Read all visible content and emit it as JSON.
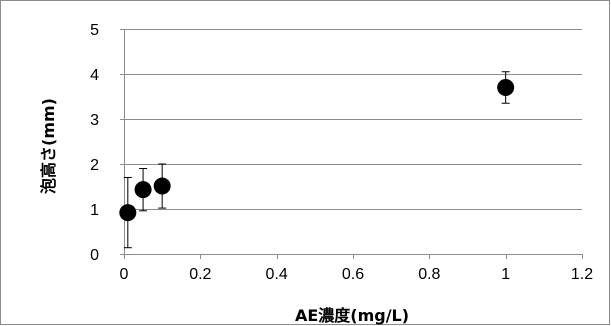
{
  "chart_data": {
    "type": "scatter",
    "title": "",
    "xlabel": "AE濃度(mg/L)",
    "ylabel": "泡高さ(mm)",
    "xlim": [
      0,
      1.2
    ],
    "ylim": [
      0,
      5
    ],
    "x_ticks": [
      "0",
      "0.2",
      "0.4",
      "0.6",
      "0.8",
      "1",
      "1.2"
    ],
    "y_ticks": [
      "0",
      "1",
      "2",
      "3",
      "4",
      "5"
    ],
    "grid": {
      "horizontal": true,
      "vertical": false
    },
    "legend": "none",
    "colors": {
      "marker": "#000000",
      "gridline": "#8c8c8c",
      "axis": "#8c8c8c"
    },
    "series": [
      {
        "points": [
          {
            "x": 0.01,
            "y": 0.92,
            "y_err_low": 0.78,
            "y_err_high": 0.78
          },
          {
            "x": 0.05,
            "y": 1.43,
            "y_err_low": 0.47,
            "y_err_high": 0.47
          },
          {
            "x": 0.1,
            "y": 1.51,
            "y_err_low": 0.49,
            "y_err_high": 0.49
          },
          {
            "x": 1.0,
            "y": 3.7,
            "y_err_low": 0.35,
            "y_err_high": 0.35
          }
        ]
      }
    ]
  }
}
